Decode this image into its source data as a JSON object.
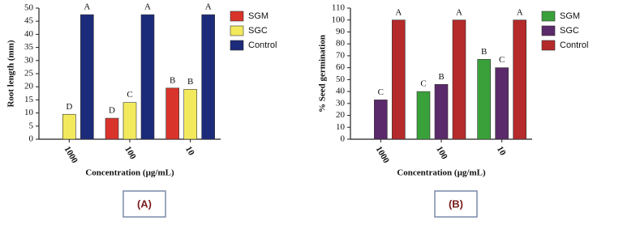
{
  "chart_data": [
    {
      "type": "bar",
      "ylabel": "Root length (mm)",
      "xlabel": "Concentration (µg/mL)",
      "panel_label": "(A)",
      "categories": [
        "1000",
        "100",
        "10"
      ],
      "ylim": [
        0,
        50
      ],
      "yticks": [
        0,
        5,
        10,
        15,
        20,
        25,
        30,
        35,
        40,
        45,
        50
      ],
      "series": [
        {
          "name": "SGM",
          "color": "#d9342b",
          "values": [
            null,
            8,
            19.5
          ],
          "labels": [
            null,
            "D",
            "B"
          ]
        },
        {
          "name": "SGC",
          "color": "#f2ea5c",
          "values": [
            9.5,
            14,
            19
          ],
          "labels": [
            "D",
            "C",
            "B"
          ]
        },
        {
          "name": "Control",
          "color": "#1c2a7a",
          "values": [
            47.5,
            47.5,
            47.5
          ],
          "labels": [
            "A",
            "A",
            "A"
          ]
        }
      ]
    },
    {
      "type": "bar",
      "ylabel": "% Seed germination",
      "xlabel": "Concentration (µg/mL)",
      "panel_label": "(B)",
      "categories": [
        "1000",
        "100",
        "10"
      ],
      "ylim": [
        0,
        110
      ],
      "yticks": [
        0,
        10,
        20,
        30,
        40,
        50,
        60,
        70,
        80,
        90,
        100,
        110
      ],
      "series": [
        {
          "name": "SGM",
          "color": "#3aa13a",
          "values": [
            null,
            40,
            67
          ],
          "labels": [
            null,
            "C",
            "B"
          ]
        },
        {
          "name": "SGC",
          "color": "#5a2a6a",
          "values": [
            33,
            46,
            60
          ],
          "labels": [
            "C",
            "B",
            "C"
          ]
        },
        {
          "name": "Control",
          "color": "#b52a2a",
          "values": [
            100,
            100,
            100
          ],
          "labels": [
            "A",
            "A",
            "A"
          ]
        }
      ]
    }
  ]
}
